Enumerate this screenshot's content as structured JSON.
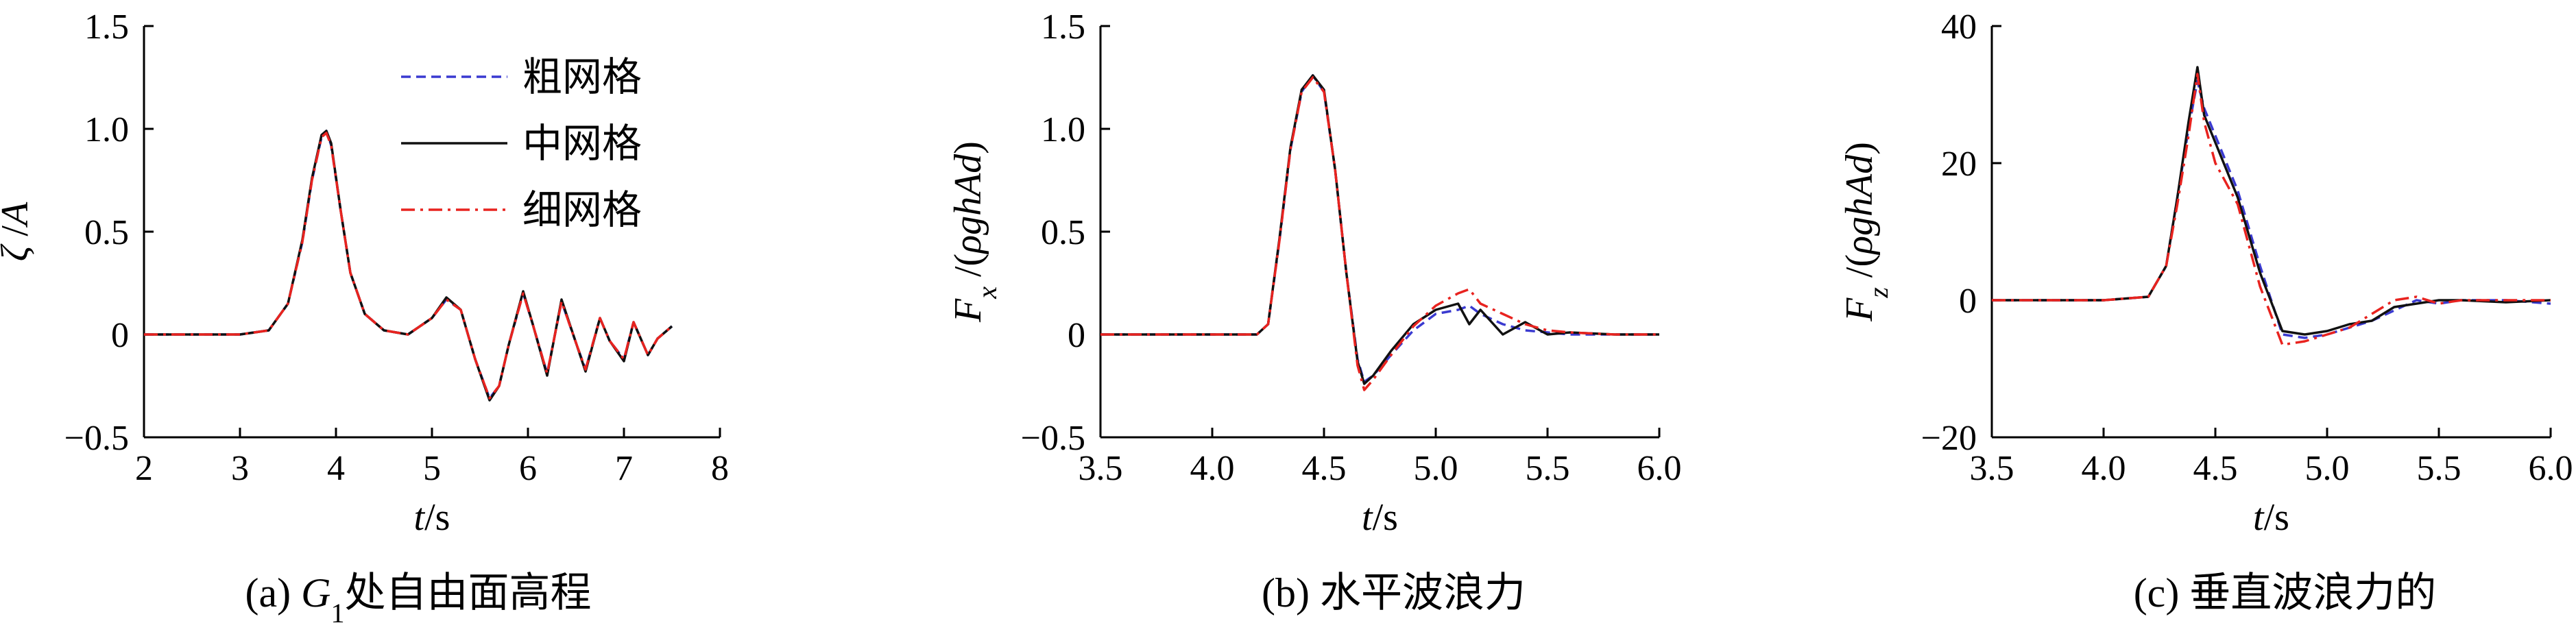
{
  "figure": {
    "legend": [
      {
        "name": "粗网格",
        "color": "#3a3ad0",
        "dash": "dashed"
      },
      {
        "name": "中网格",
        "color": "#111111",
        "dash": "solid"
      },
      {
        "name": "细网格",
        "color": "#e8231f",
        "dash": "dashdot"
      }
    ]
  },
  "chart_data": [
    {
      "type": "line",
      "caption": "(a) G1处自由面高程",
      "caption_parts": {
        "prefix": "(a) ",
        "var": "G",
        "sub": "1",
        "rest": "处自由面高程"
      },
      "xlabel": "t/s",
      "xlabel_parts": {
        "var": "t",
        "rest": "/s"
      },
      "ylabel": "ζ /A",
      "ylabel_parts": {
        "var": "ζ",
        "rest": " /",
        "var2": "A"
      },
      "xlim": [
        2,
        8
      ],
      "ylim": [
        -0.5,
        1.5
      ],
      "xticks": [
        2,
        3,
        4,
        5,
        6,
        7,
        8
      ],
      "xtick_labels": [
        "2",
        "3",
        "4",
        "5",
        "6",
        "7",
        "8"
      ],
      "yticks": [
        -0.5,
        0,
        0.5,
        1.0,
        1.5
      ],
      "ytick_labels": [
        "−0.5",
        "0",
        "0.5",
        "1.0",
        "1.5"
      ],
      "legend_position": "top-right",
      "series": [
        {
          "name": "粗网格",
          "x": [
            2.0,
            2.5,
            3.0,
            3.3,
            3.5,
            3.65,
            3.75,
            3.85,
            3.9,
            3.95,
            4.05,
            4.15,
            4.3,
            4.5,
            4.75,
            5.0,
            5.15,
            5.3,
            5.45,
            5.6,
            5.7,
            5.8,
            5.95,
            6.05,
            6.2,
            6.35,
            6.5,
            6.6,
            6.75,
            6.85,
            7.0,
            7.1,
            7.25,
            7.35,
            7.5
          ],
          "y": [
            0.0,
            0.0,
            0.0,
            0.02,
            0.15,
            0.45,
            0.75,
            0.96,
            0.99,
            0.92,
            0.6,
            0.3,
            0.1,
            0.02,
            0.0,
            0.08,
            0.17,
            0.12,
            -0.12,
            -0.31,
            -0.25,
            -0.05,
            0.2,
            0.05,
            -0.19,
            0.16,
            -0.04,
            -0.17,
            0.08,
            -0.03,
            -0.12,
            0.06,
            -0.1,
            -0.02,
            0.04
          ]
        },
        {
          "name": "中网格",
          "x": [
            2.0,
            2.5,
            3.0,
            3.3,
            3.5,
            3.65,
            3.75,
            3.85,
            3.9,
            3.95,
            4.05,
            4.15,
            4.3,
            4.5,
            4.75,
            5.0,
            5.15,
            5.3,
            5.45,
            5.6,
            5.7,
            5.8,
            5.95,
            6.05,
            6.2,
            6.35,
            6.5,
            6.6,
            6.75,
            6.85,
            7.0,
            7.1,
            7.25,
            7.35,
            7.5
          ],
          "y": [
            0.0,
            0.0,
            0.0,
            0.02,
            0.15,
            0.46,
            0.76,
            0.97,
            0.99,
            0.93,
            0.6,
            0.3,
            0.1,
            0.02,
            0.0,
            0.08,
            0.18,
            0.12,
            -0.12,
            -0.32,
            -0.25,
            -0.05,
            0.21,
            0.05,
            -0.2,
            0.17,
            -0.04,
            -0.18,
            0.08,
            -0.03,
            -0.13,
            0.06,
            -0.1,
            -0.02,
            0.04
          ]
        },
        {
          "name": "细网格",
          "x": [
            2.0,
            2.5,
            3.0,
            3.3,
            3.5,
            3.65,
            3.75,
            3.85,
            3.9,
            3.95,
            4.05,
            4.15,
            4.3,
            4.5,
            4.75,
            5.0,
            5.15,
            5.3,
            5.45,
            5.6,
            5.7,
            5.8,
            5.95,
            6.05,
            6.2,
            6.35,
            6.5,
            6.6,
            6.75,
            6.85,
            7.0,
            7.1,
            7.25,
            7.35,
            7.5
          ],
          "y": [
            0.0,
            0.0,
            0.0,
            0.02,
            0.15,
            0.45,
            0.75,
            0.96,
            0.98,
            0.92,
            0.6,
            0.3,
            0.1,
            0.02,
            0.0,
            0.08,
            0.17,
            0.12,
            -0.12,
            -0.31,
            -0.25,
            -0.05,
            0.2,
            0.05,
            -0.19,
            0.16,
            -0.04,
            -0.17,
            0.08,
            -0.03,
            -0.12,
            0.06,
            -0.1,
            -0.02,
            0.04
          ]
        }
      ]
    },
    {
      "type": "line",
      "caption": "(b) 水平波浪力",
      "caption_parts": {
        "prefix": "(b) ",
        "rest": "水平波浪力"
      },
      "xlabel": "t/s",
      "xlabel_parts": {
        "var": "t",
        "rest": "/s"
      },
      "ylabel": "Fx /(ρghAd)",
      "ylabel_parts": {
        "var": "F",
        "sub": "x",
        "rest": " /(ρghAd)"
      },
      "xlim": [
        3.5,
        6.0
      ],
      "ylim": [
        -0.5,
        1.5
      ],
      "xticks": [
        3.5,
        4.0,
        4.5,
        5.0,
        5.5,
        6.0
      ],
      "xtick_labels": [
        "3.5",
        "4.0",
        "4.5",
        "5.0",
        "5.5",
        "6.0"
      ],
      "yticks": [
        -0.5,
        0,
        0.5,
        1.0,
        1.5
      ],
      "ytick_labels": [
        "−0.5",
        "0",
        "0.5",
        "1.0",
        "1.5"
      ],
      "series": [
        {
          "name": "粗网格",
          "x": [
            3.5,
            4.0,
            4.2,
            4.25,
            4.3,
            4.35,
            4.4,
            4.45,
            4.5,
            4.55,
            4.6,
            4.65,
            4.68,
            4.72,
            4.8,
            4.9,
            5.0,
            5.1,
            5.15,
            5.2,
            5.3,
            5.4,
            5.5,
            5.6,
            5.8,
            6.0
          ],
          "y": [
            0.0,
            0.0,
            0.0,
            0.05,
            0.45,
            0.9,
            1.18,
            1.26,
            1.18,
            0.8,
            0.3,
            -0.12,
            -0.23,
            -0.2,
            -0.1,
            0.02,
            0.1,
            0.12,
            0.14,
            0.1,
            0.05,
            0.02,
            0.01,
            0.0,
            0.0,
            0.0
          ]
        },
        {
          "name": "中网格",
          "x": [
            3.5,
            4.0,
            4.2,
            4.25,
            4.3,
            4.35,
            4.4,
            4.45,
            4.5,
            4.55,
            4.6,
            4.65,
            4.68,
            4.72,
            4.8,
            4.9,
            5.0,
            5.1,
            5.15,
            5.2,
            5.3,
            5.4,
            5.5,
            5.6,
            5.8,
            6.0
          ],
          "y": [
            0.0,
            0.0,
            0.0,
            0.05,
            0.46,
            0.91,
            1.19,
            1.26,
            1.19,
            0.8,
            0.3,
            -0.13,
            -0.24,
            -0.2,
            -0.08,
            0.05,
            0.12,
            0.15,
            0.05,
            0.12,
            0.0,
            0.06,
            0.0,
            0.01,
            0.0,
            0.0
          ]
        },
        {
          "name": "细网格",
          "x": [
            3.5,
            4.0,
            4.2,
            4.25,
            4.3,
            4.35,
            4.4,
            4.45,
            4.5,
            4.55,
            4.6,
            4.65,
            4.68,
            4.72,
            4.8,
            4.9,
            5.0,
            5.1,
            5.15,
            5.2,
            5.3,
            5.4,
            5.5,
            5.6,
            5.8,
            6.0
          ],
          "y": [
            0.0,
            0.0,
            0.0,
            0.05,
            0.45,
            0.9,
            1.18,
            1.25,
            1.18,
            0.8,
            0.3,
            -0.15,
            -0.27,
            -0.22,
            -0.1,
            0.04,
            0.14,
            0.2,
            0.22,
            0.15,
            0.1,
            0.05,
            0.02,
            0.01,
            0.0,
            0.0
          ]
        }
      ]
    },
    {
      "type": "line",
      "caption": "(c) 垂直波浪力的",
      "caption_parts": {
        "prefix": "(c) ",
        "rest": "垂直波浪力的"
      },
      "xlabel": "t/s",
      "xlabel_parts": {
        "var": "t",
        "rest": "/s"
      },
      "ylabel": "Fz /(ρghAd)",
      "ylabel_parts": {
        "var": "F",
        "sub": "z",
        "rest": " /(ρghAd)"
      },
      "xlim": [
        3.5,
        6.0
      ],
      "ylim": [
        -20,
        40
      ],
      "xticks": [
        3.5,
        4.0,
        4.5,
        5.0,
        5.5,
        6.0
      ],
      "xtick_labels": [
        "3.5",
        "4.0",
        "4.5",
        "5.0",
        "5.5",
        "6.0"
      ],
      "yticks": [
        -20,
        0,
        20,
        40
      ],
      "ytick_labels": [
        "−20",
        "0",
        "20",
        "40"
      ],
      "series": [
        {
          "name": "粗网格",
          "x": [
            3.5,
            4.0,
            4.2,
            4.28,
            4.33,
            4.38,
            4.42,
            4.45,
            4.5,
            4.6,
            4.7,
            4.8,
            4.9,
            5.0,
            5.1,
            5.2,
            5.3,
            5.4,
            5.5,
            5.6,
            5.8,
            6.0
          ],
          "y": [
            0.0,
            0.0,
            0.5,
            5.0,
            15.0,
            25.0,
            32.0,
            28.0,
            24.0,
            16.0,
            5.0,
            -5.0,
            -5.5,
            -5.0,
            -4.0,
            -3.0,
            -1.5,
            0.0,
            -0.5,
            0.0,
            0.0,
            -0.5
          ]
        },
        {
          "name": "中网格",
          "x": [
            3.5,
            4.0,
            4.2,
            4.28,
            4.33,
            4.38,
            4.42,
            4.45,
            4.5,
            4.6,
            4.7,
            4.8,
            4.9,
            5.0,
            5.1,
            5.2,
            5.3,
            5.4,
            5.5,
            5.6,
            5.8,
            6.0
          ],
          "y": [
            0.0,
            0.0,
            0.5,
            5.0,
            15.0,
            26.0,
            34.0,
            27.0,
            23.0,
            15.0,
            4.0,
            -4.5,
            -5.0,
            -4.5,
            -3.5,
            -3.0,
            -1.0,
            -0.5,
            0.0,
            0.0,
            -0.3,
            0.0
          ]
        },
        {
          "name": "细网格",
          "x": [
            3.5,
            4.0,
            4.2,
            4.28,
            4.33,
            4.38,
            4.42,
            4.45,
            4.5,
            4.6,
            4.7,
            4.8,
            4.9,
            5.0,
            5.1,
            5.2,
            5.3,
            5.4,
            5.5,
            5.6,
            5.8,
            6.0
          ],
          "y": [
            0.0,
            0.0,
            0.5,
            5.0,
            14.0,
            24.0,
            33.0,
            26.0,
            20.0,
            14.0,
            2.0,
            -6.5,
            -6.0,
            -5.0,
            -4.0,
            -2.0,
            0.0,
            0.5,
            -0.5,
            0.0,
            0.0,
            0.0
          ]
        }
      ]
    }
  ]
}
